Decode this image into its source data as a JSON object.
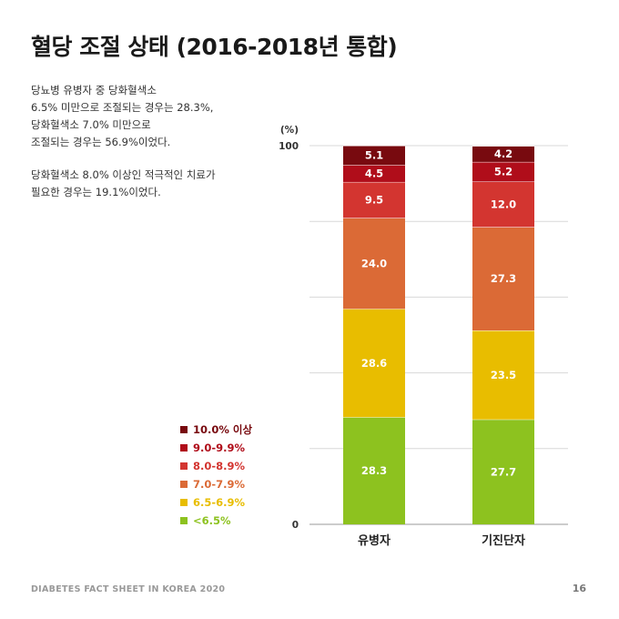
{
  "title": "혈당 조절 상태 (2016-2018년 통합)",
  "description": [
    "당뇨병 유병자 중 당화혈색소\n6.5% 미만으로 조절되는 경우는 28.3%,\n당화혈색소 7.0% 미만으로\n조절되는 경우는 56.9%이었다.",
    "당화혈색소 8.0% 이상인 적극적인 치료가\n필요한 경우는 19.1%이었다."
  ],
  "footer": {
    "left": "DIABETES FACT SHEET IN KOREA 2020",
    "page": "16"
  },
  "chart_data": {
    "type": "bar",
    "stacked": true,
    "ylabel": "(%)",
    "ylim": [
      0,
      100
    ],
    "yticks": [
      "0",
      "100"
    ],
    "grid": true,
    "legend_position": "left",
    "categories": [
      "유병자",
      "기진단자"
    ],
    "series": [
      {
        "name": "<6.5%",
        "color": "#8dc21f",
        "values": [
          28.3,
          27.7
        ]
      },
      {
        "name": "6.5-6.9%",
        "color": "#e8bd00",
        "values": [
          28.6,
          23.5
        ]
      },
      {
        "name": "7.0-7.9%",
        "color": "#db6a36",
        "values": [
          24.0,
          27.3
        ]
      },
      {
        "name": "8.0-8.9%",
        "color": "#d33530",
        "values": [
          9.5,
          12.0
        ]
      },
      {
        "name": "9.0-9.9%",
        "color": "#b00d1a",
        "values": [
          4.5,
          5.2
        ]
      },
      {
        "name": "10.0% 이상",
        "color": "#780a0f",
        "values": [
          5.1,
          4.2
        ]
      }
    ],
    "legend_order": [
      "10.0% 이상",
      "9.0-9.9%",
      "8.0-8.9%",
      "7.0-7.9%",
      "6.5-6.9%",
      "<6.5%"
    ]
  }
}
